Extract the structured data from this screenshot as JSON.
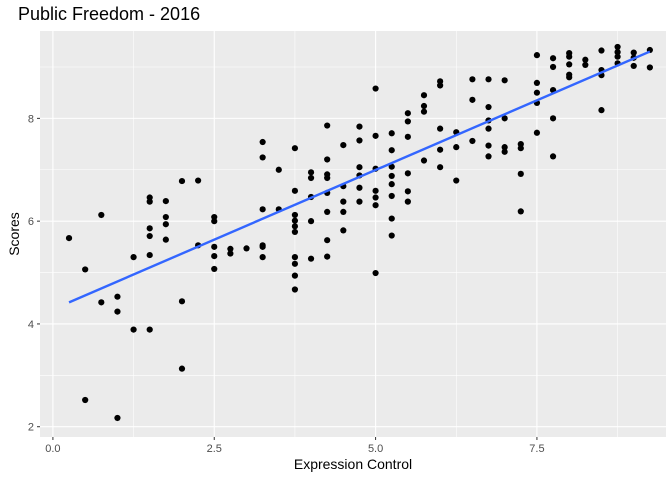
{
  "chart_data": {
    "type": "scatter",
    "title": "Public Freedom - 2016",
    "xlabel": "Expression Control",
    "ylabel": "Scores",
    "xlim": [
      -0.2,
      9.5
    ],
    "ylim": [
      1.8,
      9.7
    ],
    "x_ticks": [
      0,
      2.5,
      5,
      7.5
    ],
    "x_tick_labels": [
      "0.0",
      "2.5",
      "5.0",
      "7.5"
    ],
    "y_ticks": [
      2,
      4,
      6,
      8
    ],
    "y_tick_labels": [
      "2",
      "4",
      "6",
      "8"
    ],
    "grid": true,
    "panel_background": "#ebebeb",
    "grid_color": "#ffffff",
    "point_color": "#000000",
    "trend_color": "#3366ff",
    "trend_line": {
      "x": [
        0.25,
        9.25
      ],
      "y": [
        4.42,
        9.3
      ]
    },
    "points": [
      [
        0.25,
        5.67
      ],
      [
        0.5,
        5.06
      ],
      [
        0.5,
        2.52
      ],
      [
        0.75,
        6.12
      ],
      [
        0.75,
        4.42
      ],
      [
        1.0,
        4.53
      ],
      [
        1.0,
        4.24
      ],
      [
        1.0,
        2.17
      ],
      [
        1.25,
        5.3
      ],
      [
        1.25,
        3.89
      ],
      [
        1.5,
        6.46
      ],
      [
        1.5,
        6.38
      ],
      [
        1.5,
        5.86
      ],
      [
        1.5,
        5.71
      ],
      [
        1.5,
        5.34
      ],
      [
        1.5,
        3.89
      ],
      [
        1.75,
        6.39
      ],
      [
        1.75,
        6.08
      ],
      [
        1.75,
        5.94
      ],
      [
        1.75,
        5.64
      ],
      [
        2.0,
        6.78
      ],
      [
        2.0,
        4.44
      ],
      [
        2.0,
        3.13
      ],
      [
        2.25,
        6.79
      ],
      [
        2.25,
        5.53
      ],
      [
        2.5,
        6.08
      ],
      [
        2.5,
        6.0
      ],
      [
        2.5,
        5.5
      ],
      [
        2.5,
        5.32
      ],
      [
        2.5,
        5.07
      ],
      [
        2.75,
        5.46
      ],
      [
        2.75,
        5.37
      ],
      [
        3.0,
        5.47
      ],
      [
        3.25,
        7.54
      ],
      [
        3.25,
        7.24
      ],
      [
        3.25,
        6.23
      ],
      [
        3.25,
        5.53
      ],
      [
        3.25,
        5.5
      ],
      [
        3.25,
        5.3
      ],
      [
        3.5,
        7.0
      ],
      [
        3.5,
        6.23
      ],
      [
        3.75,
        7.42
      ],
      [
        3.75,
        6.59
      ],
      [
        3.75,
        6.12
      ],
      [
        3.75,
        6.01
      ],
      [
        3.75,
        5.9
      ],
      [
        3.75,
        5.79
      ],
      [
        3.75,
        5.3
      ],
      [
        3.75,
        5.17
      ],
      [
        3.75,
        4.94
      ],
      [
        3.75,
        4.67
      ],
      [
        4.0,
        6.95
      ],
      [
        4.0,
        6.84
      ],
      [
        4.0,
        6.47
      ],
      [
        4.0,
        6.0
      ],
      [
        4.0,
        5.27
      ],
      [
        4.25,
        7.86
      ],
      [
        4.25,
        7.2
      ],
      [
        4.25,
        6.91
      ],
      [
        4.25,
        6.84
      ],
      [
        4.25,
        6.55
      ],
      [
        4.25,
        6.18
      ],
      [
        4.25,
        5.63
      ],
      [
        4.25,
        5.31
      ],
      [
        4.5,
        7.48
      ],
      [
        4.5,
        6.68
      ],
      [
        4.5,
        6.38
      ],
      [
        4.5,
        6.18
      ],
      [
        4.5,
        5.82
      ],
      [
        4.75,
        7.84
      ],
      [
        4.75,
        7.57
      ],
      [
        4.75,
        7.05
      ],
      [
        4.75,
        6.89
      ],
      [
        4.75,
        6.65
      ],
      [
        4.75,
        6.38
      ],
      [
        5.0,
        8.58
      ],
      [
        5.0,
        7.66
      ],
      [
        5.0,
        7.02
      ],
      [
        5.0,
        6.59
      ],
      [
        5.0,
        6.46
      ],
      [
        5.0,
        6.31
      ],
      [
        5.0,
        4.99
      ],
      [
        5.25,
        7.71
      ],
      [
        5.25,
        7.38
      ],
      [
        5.25,
        7.06
      ],
      [
        5.25,
        6.88
      ],
      [
        5.25,
        6.72
      ],
      [
        5.25,
        6.49
      ],
      [
        5.25,
        6.05
      ],
      [
        5.25,
        5.72
      ],
      [
        5.5,
        8.1
      ],
      [
        5.5,
        7.94
      ],
      [
        5.5,
        7.64
      ],
      [
        5.5,
        6.93
      ],
      [
        5.5,
        6.58
      ],
      [
        5.5,
        6.38
      ],
      [
        5.75,
        8.45
      ],
      [
        5.75,
        8.24
      ],
      [
        5.75,
        8.13
      ],
      [
        5.75,
        7.18
      ],
      [
        6.0,
        8.72
      ],
      [
        6.0,
        8.64
      ],
      [
        6.0,
        7.8
      ],
      [
        6.0,
        7.39
      ],
      [
        6.0,
        7.05
      ],
      [
        6.25,
        7.73
      ],
      [
        6.25,
        7.44
      ],
      [
        6.25,
        6.79
      ],
      [
        6.5,
        8.76
      ],
      [
        6.5,
        8.36
      ],
      [
        6.5,
        7.56
      ],
      [
        6.75,
        8.76
      ],
      [
        6.75,
        8.22
      ],
      [
        6.75,
        7.96
      ],
      [
        6.75,
        7.8
      ],
      [
        6.75,
        7.47
      ],
      [
        6.75,
        7.26
      ],
      [
        7.0,
        8.74
      ],
      [
        7.0,
        8.0
      ],
      [
        7.0,
        7.44
      ],
      [
        7.0,
        7.35
      ],
      [
        7.25,
        7.5
      ],
      [
        7.25,
        7.42
      ],
      [
        7.25,
        6.92
      ],
      [
        7.25,
        6.19
      ],
      [
        7.5,
        9.23
      ],
      [
        7.5,
        8.69
      ],
      [
        7.5,
        8.5
      ],
      [
        7.5,
        8.3
      ],
      [
        7.5,
        7.72
      ],
      [
        7.75,
        9.17
      ],
      [
        7.75,
        9.0
      ],
      [
        7.75,
        8.55
      ],
      [
        7.75,
        8.0
      ],
      [
        7.75,
        7.26
      ],
      [
        8.0,
        9.27
      ],
      [
        8.0,
        9.2
      ],
      [
        8.0,
        9.05
      ],
      [
        8.0,
        8.85
      ],
      [
        8.0,
        8.8
      ],
      [
        8.25,
        9.14
      ],
      [
        8.25,
        9.04
      ],
      [
        8.5,
        9.32
      ],
      [
        8.5,
        8.94
      ],
      [
        8.5,
        8.84
      ],
      [
        8.5,
        8.16
      ],
      [
        8.75,
        9.39
      ],
      [
        8.75,
        9.29
      ],
      [
        8.75,
        9.2
      ],
      [
        8.75,
        9.07
      ],
      [
        9.0,
        9.28
      ],
      [
        9.0,
        9.18
      ],
      [
        9.0,
        9.02
      ],
      [
        9.25,
        9.33
      ],
      [
        9.25,
        8.99
      ]
    ]
  }
}
